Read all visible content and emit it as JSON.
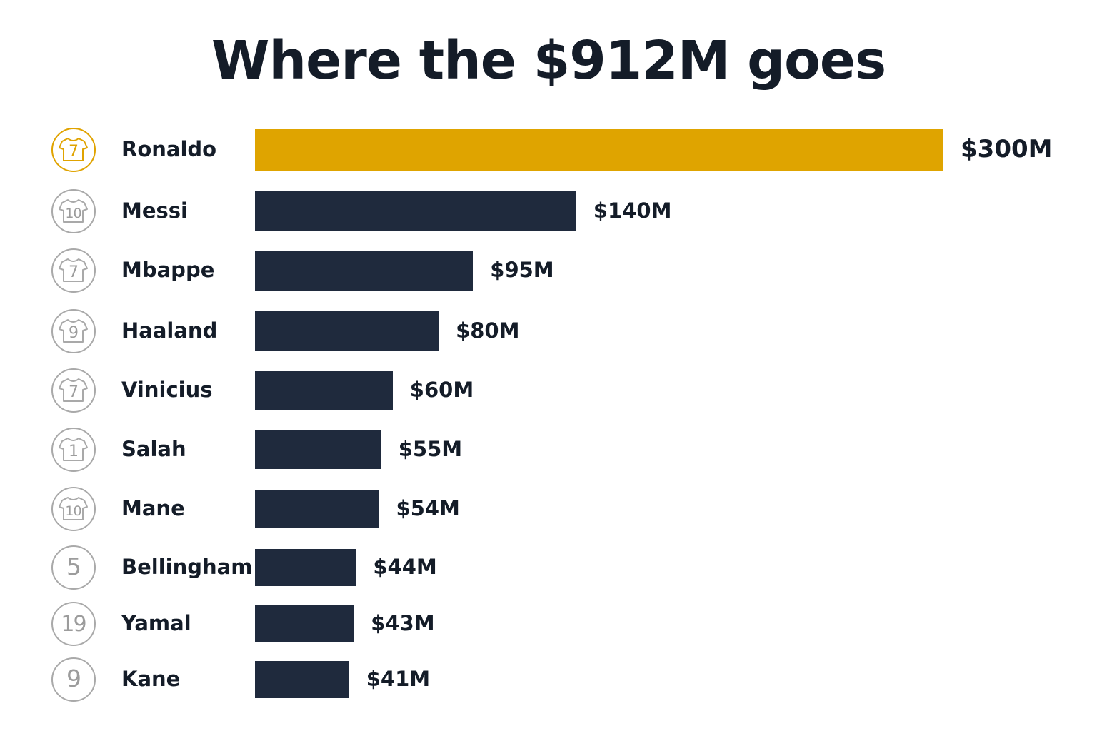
{
  "chart_data": {
    "type": "bar",
    "orientation": "horizontal",
    "title": "Where the $912M goes",
    "xlabel": "",
    "ylabel": "",
    "grid": false,
    "legend": "none",
    "xlim": [
      0,
      300
    ],
    "unit_prefix": "$",
    "unit_suffix": "M",
    "highlight_index": 0,
    "colors": {
      "highlight": "#dfa400",
      "bar": "#1f2a3d",
      "badge_highlight": "#e0a300",
      "badge": "#a9a9a9"
    },
    "categories": [
      "Ronaldo",
      "Messi",
      "Mbappe",
      "Haaland",
      "Vinicius",
      "Salah",
      "Mane",
      "Bellingham",
      "Yamal",
      "Kane"
    ],
    "values": [
      300,
      140,
      95,
      80,
      60,
      55,
      54,
      44,
      43,
      41
    ],
    "value_labels": [
      "$300M",
      "$140M",
      "$95M",
      "$80M",
      "$60M",
      "$55M",
      "$54M",
      "$44M",
      "$43M",
      "$41M"
    ],
    "jersey_numbers": [
      "7",
      "10",
      "7",
      "9",
      "7",
      "1",
      "10",
      "5",
      "19",
      "9"
    ],
    "jersey_icons": [
      "shirt-icon",
      "shirt-icon",
      "shirt-icon",
      "shirt-icon",
      "shirt-icon",
      "shirt-icon",
      "shirt-icon",
      "number-only",
      "number-only",
      "number-only"
    ]
  }
}
